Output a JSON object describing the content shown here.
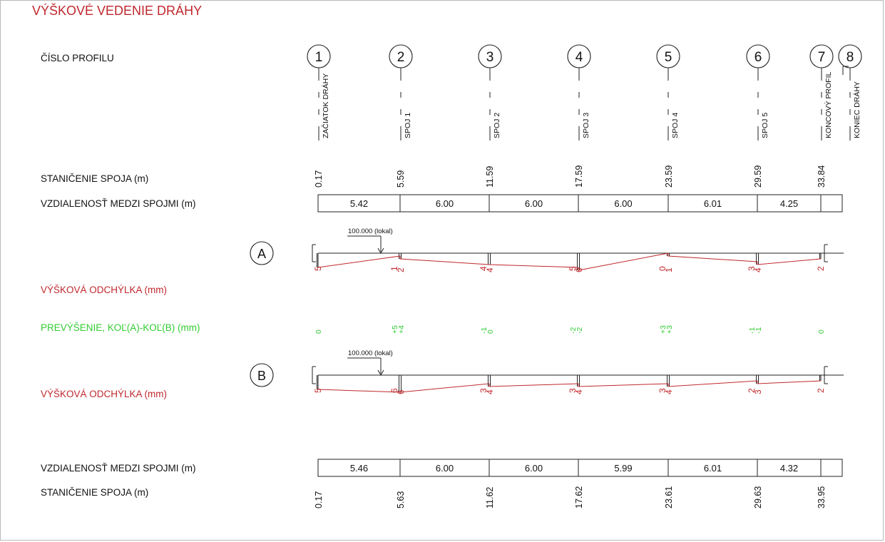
{
  "title": "VÝŠKOVÉ VEDENIE DRÁHY",
  "labels": {
    "profile_number": "ČÍSLO PROFILU",
    "stationing_top": "STANIČENIE SPOJA (m)",
    "distance_top": "VZDIALENOSŤ MEDZI SPOJMI (m)",
    "deviation_a": "VÝŠKOVÁ ODCHÝLKA (mm)",
    "superelevation": "PREVÝŠENIE, KOĽ(A)-KOĽ(B) (mm)",
    "deviation_b": "VÝŠKOVÁ ODCHÝLKA (mm)",
    "distance_bottom": "VZDIALENOSŤ MEDZI SPOJMI (m)",
    "stationing_bottom": "STANIČENIE SPOJA (m)"
  },
  "colors": {
    "title": "#c0282d",
    "deviation": "#c0282d",
    "superelevation": "#33cc33",
    "line": "#222222"
  },
  "profiles": [
    {
      "number": "1",
      "name": "ZAČIATOK DRÁHY"
    },
    {
      "number": "2",
      "name": "SPOJ 1"
    },
    {
      "number": "3",
      "name": "SPOJ 2"
    },
    {
      "number": "4",
      "name": "SPOJ 3"
    },
    {
      "number": "5",
      "name": "SPOJ 4"
    },
    {
      "number": "6",
      "name": "SPOJ 5"
    },
    {
      "number": "7",
      "name": "KONCOVÝ PROFIL"
    },
    {
      "number": "8",
      "name": "KONIEC DRÁHY"
    }
  ],
  "rail_a": {
    "name": "A",
    "reference_label": "100.000 (lokal)",
    "stationing": [
      "0.17",
      "5.59",
      "11.59",
      "17.59",
      "23.59",
      "29.59",
      "33.84"
    ],
    "distances": [
      "5.42",
      "6.00",
      "6.00",
      "6.00",
      "6.01",
      "4.25"
    ],
    "deviations": [
      {
        "labels": [
          "5"
        ],
        "values_mm": [
          5
        ]
      },
      {
        "labels": [
          "1",
          "2"
        ],
        "values_mm": [
          1,
          2
        ]
      },
      {
        "labels": [
          "4",
          "4"
        ],
        "values_mm": [
          4,
          4
        ]
      },
      {
        "labels": [
          "5",
          "6"
        ],
        "values_mm": [
          5,
          6
        ]
      },
      {
        "labels": [
          "0",
          "1"
        ],
        "values_mm": [
          0,
          1
        ]
      },
      {
        "labels": [
          "3",
          "4"
        ],
        "values_mm": [
          3,
          4
        ]
      },
      {
        "labels": [
          "2"
        ],
        "values_mm": [
          2
        ]
      }
    ]
  },
  "superelevation": [
    {
      "labels": [
        "0"
      ]
    },
    {
      "labels": [
        "+5",
        "+4"
      ]
    },
    {
      "labels": [
        "-1",
        "0"
      ]
    },
    {
      "labels": [
        "-2",
        "-2"
      ]
    },
    {
      "labels": [
        "+3",
        "+3"
      ]
    },
    {
      "labels": [
        "-1",
        "-1"
      ]
    },
    {
      "labels": [
        "0"
      ]
    }
  ],
  "rail_b": {
    "name": "B",
    "reference_label": "100.000 (lokal)",
    "stationing": [
      "0.17",
      "5.63",
      "11.62",
      "17.62",
      "23.61",
      "29.63",
      "33.95"
    ],
    "distances": [
      "5.46",
      "6.00",
      "6.00",
      "5.99",
      "6.01",
      "4.32"
    ],
    "deviations": [
      {
        "labels": [
          "5"
        ],
        "values_mm": [
          5
        ]
      },
      {
        "labels": [
          "6",
          "6"
        ],
        "values_mm": [
          6,
          6
        ]
      },
      {
        "labels": [
          "3",
          "4"
        ],
        "values_mm": [
          3,
          4
        ]
      },
      {
        "labels": [
          "3",
          "4"
        ],
        "values_mm": [
          3,
          4
        ]
      },
      {
        "labels": [
          "3",
          "4"
        ],
        "values_mm": [
          3,
          4
        ]
      },
      {
        "labels": [
          "2",
          "3"
        ],
        "values_mm": [
          2,
          3
        ]
      },
      {
        "labels": [
          "2"
        ],
        "values_mm": [
          2
        ]
      }
    ]
  }
}
